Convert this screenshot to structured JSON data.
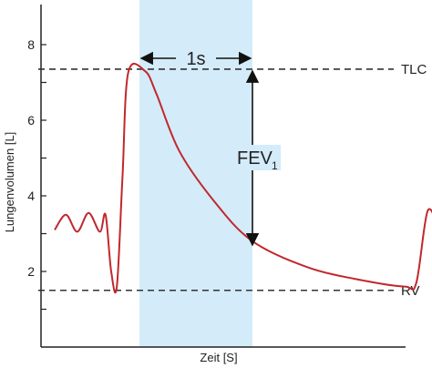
{
  "chart_data": {
    "type": "line",
    "title": "",
    "xlabel": "Zeit [S]",
    "ylabel": "Lungenvolumen [L]",
    "ylim": [
      0,
      9
    ],
    "yticks": [
      2,
      4,
      6,
      8
    ],
    "ytick_labels": [
      "2",
      "4",
      "6",
      "8"
    ],
    "grid": false,
    "series": [
      {
        "values": [
          [
            0.0,
            3.1
          ],
          [
            0.2,
            3.5
          ],
          [
            0.4,
            3.05
          ],
          [
            0.6,
            3.55
          ],
          [
            0.8,
            3.05
          ],
          [
            0.9,
            3.5
          ],
          [
            1.0,
            2.0
          ],
          [
            1.1,
            1.6
          ],
          [
            1.2,
            4.5
          ],
          [
            1.3,
            7.25
          ],
          [
            1.6,
            7.3
          ],
          [
            1.8,
            6.7
          ],
          [
            2.2,
            5.2
          ],
          [
            2.8,
            3.9
          ],
          [
            3.5,
            2.8
          ],
          [
            4.5,
            2.1
          ],
          [
            5.5,
            1.75
          ],
          [
            6.2,
            1.6
          ],
          [
            6.4,
            1.7
          ],
          [
            6.6,
            3.6
          ],
          [
            6.8,
            3.1
          ]
        ]
      }
    ],
    "reference_lines": [
      {
        "label": "TLC",
        "y": 7.35
      },
      {
        "label": "RV",
        "y": 1.5
      }
    ],
    "shaded_region": {
      "x_start": 1.5,
      "x_end": 3.5,
      "color": "#d4ebf9"
    },
    "annotations": {
      "duration_label": "1s",
      "fev_label": "FEV",
      "fev_subscript": "1"
    },
    "colors": {
      "curve": "#c0282d",
      "axis": "#222222",
      "reference": "#333333",
      "shade": "#d4ebf9"
    }
  }
}
